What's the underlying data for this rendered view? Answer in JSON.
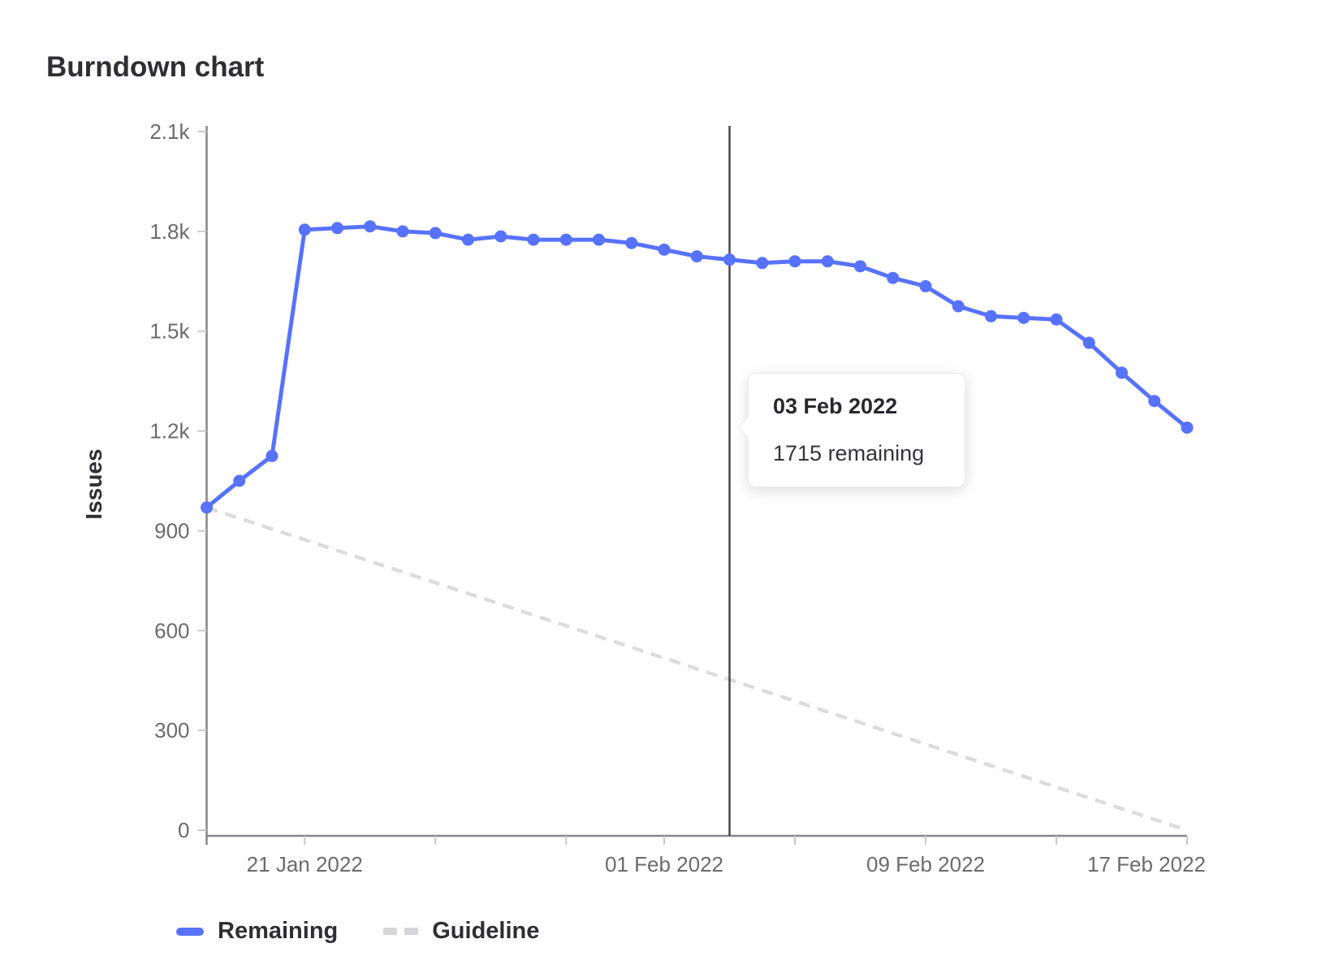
{
  "title": "Burndown chart",
  "chart_data": {
    "type": "line",
    "title": "Burndown chart",
    "xlabel": "",
    "ylabel": "Issues",
    "ylim": [
      0,
      2100
    ],
    "grid": false,
    "legend_position": "bottom-left",
    "y_ticks": [
      {
        "value": 2100,
        "label": "2.1k"
      },
      {
        "value": 1800,
        "label": "1.8k"
      },
      {
        "value": 1500,
        "label": "1.5k"
      },
      {
        "value": 1200,
        "label": "1.2k"
      },
      {
        "value": 900,
        "label": "900"
      },
      {
        "value": 600,
        "label": "600"
      },
      {
        "value": 300,
        "label": "300"
      },
      {
        "value": 0,
        "label": "0"
      }
    ],
    "x_range": [
      "18 Jan 2022",
      "17 Feb 2022"
    ],
    "x_ticks": [
      {
        "index": 3,
        "label": "21 Jan 2022"
      },
      {
        "index": 7,
        "label": ""
      },
      {
        "index": 11,
        "label": ""
      },
      {
        "index": 14,
        "label": "01 Feb 2022"
      },
      {
        "index": 18,
        "label": ""
      },
      {
        "index": 22,
        "label": "09 Feb 2022"
      },
      {
        "index": 26,
        "label": ""
      },
      {
        "index": 30,
        "label": "17 Feb 2022"
      }
    ],
    "series": [
      {
        "name": "Remaining",
        "style": "solid",
        "color": "#5772ff",
        "values": [
          970,
          1050,
          1125,
          1805,
          1810,
          1815,
          1800,
          1795,
          1775,
          1785,
          1775,
          1775,
          1775,
          1765,
          1745,
          1725,
          1715,
          1705,
          1710,
          1710,
          1695,
          1660,
          1635,
          1575,
          1545,
          1540,
          1535,
          1465,
          1375,
          1290,
          1210
        ]
      },
      {
        "name": "Guideline",
        "style": "dashed",
        "color": "#dcdcde",
        "endpoints": {
          "start_index": 0,
          "start_value": 970,
          "end_index": 30,
          "end_value": 0
        }
      }
    ]
  },
  "tooltip": {
    "date": "03 Feb 2022",
    "text": "1715 remaining",
    "point_index": 16
  },
  "marker_line": {
    "point_index": 16,
    "color": "#46464c"
  },
  "legend": [
    {
      "label": "Remaining",
      "style": "solid",
      "color": "#5772ff"
    },
    {
      "label": "Guideline",
      "style": "dashed",
      "color": "#d6d6da"
    }
  ]
}
